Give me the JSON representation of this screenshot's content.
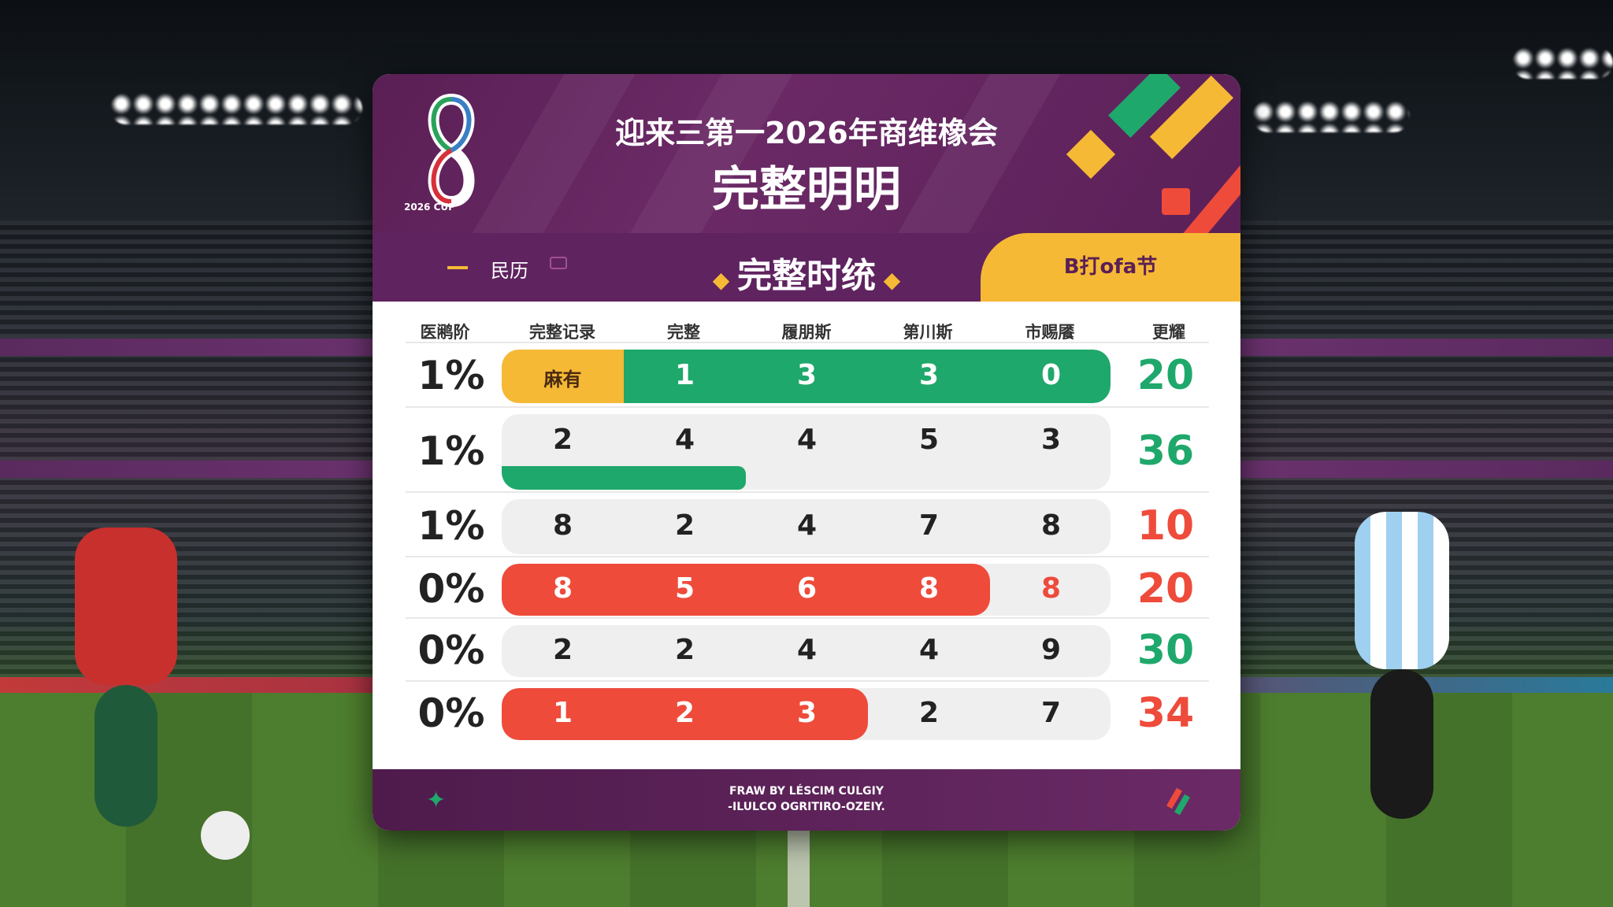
{
  "header": {
    "logo_text": "2026 CUP",
    "title_line1": "迎来三第一2026年商维橡会",
    "title_line2": "完整明明"
  },
  "subheader": {
    "left_label": "民历",
    "center_label": "完整时统",
    "right_label": "B打ofa节"
  },
  "columns": [
    "医鹇阶",
    "完整记录",
    "完整",
    "履朋斯",
    "第川斯",
    "市赐餍",
    "更耀"
  ],
  "rows": [
    {
      "pct": "1%",
      "cells": [
        "麻有",
        "1",
        "3",
        "3",
        "0"
      ],
      "total": "20",
      "total_color": "#1fa86b",
      "highlight": "green-with-yellow-first",
      "highlight_cols": 5
    },
    {
      "pct": "1%",
      "cells": [
        "2",
        "4",
        "4",
        "5",
        "3"
      ],
      "total": "36",
      "total_color": "#1fa86b",
      "highlight": "green-underbar",
      "highlight_cols": 2
    },
    {
      "pct": "1%",
      "cells": [
        "8",
        "2",
        "4",
        "7",
        "8"
      ],
      "total": "10",
      "total_color": "#ee4b3b",
      "highlight": "none",
      "highlight_cols": 0
    },
    {
      "pct": "0%",
      "cells": [
        "8",
        "5",
        "6",
        "8",
        "8"
      ],
      "total": "20",
      "total_color": "#ee4b3b",
      "highlight": "red",
      "highlight_cols": 4
    },
    {
      "pct": "0%",
      "cells": [
        "2",
        "2",
        "4",
        "4",
        "9"
      ],
      "total": "30",
      "total_color": "#1fa86b",
      "highlight": "none",
      "highlight_cols": 0
    },
    {
      "pct": "0%",
      "cells": [
        "1",
        "2",
        "3",
        "2",
        "7"
      ],
      "total": "34",
      "total_color": "#ee4b3b",
      "highlight": "red",
      "highlight_cols": 3
    }
  ],
  "footer": {
    "line1": "FRAW BY LÉSCIM CULGIY",
    "line2": "-ILULCO OGRITIRO-OZEIY."
  },
  "colors": {
    "purple": "#5f2360",
    "green": "#1fa86b",
    "red": "#ee4b3b",
    "yellow": "#f5b935"
  }
}
